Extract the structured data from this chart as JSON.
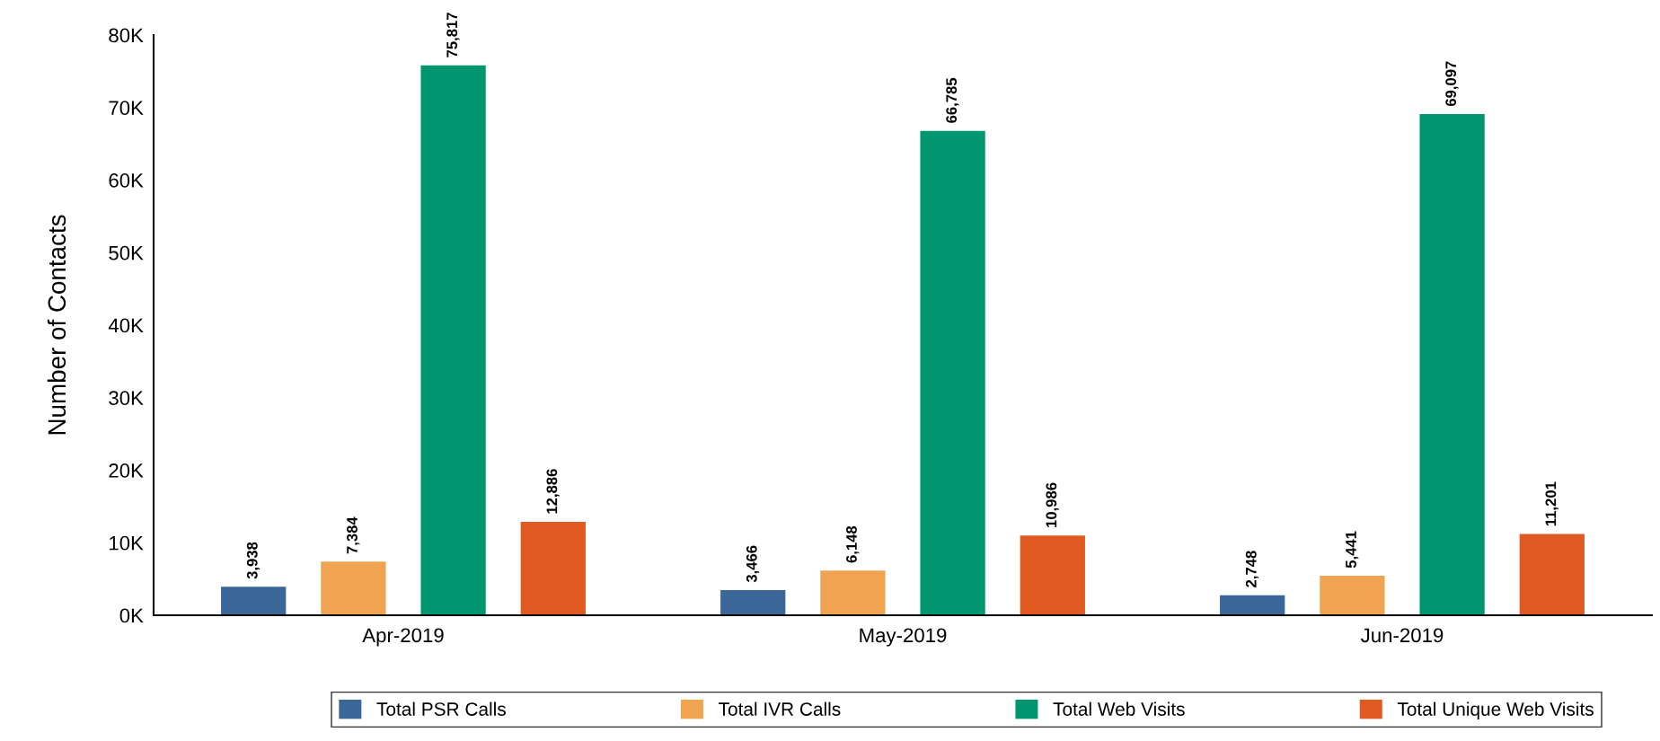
{
  "chart_data": {
    "type": "bar",
    "ylabel": "Number of Contacts",
    "categories": [
      "Apr-2019",
      "May-2019",
      "Jun-2019"
    ],
    "series": [
      {
        "name": "Total PSR Calls",
        "color": "#3b6698",
        "values": [
          3938,
          3466,
          2748
        ],
        "value_labels": [
          "3,938",
          "3,466",
          "2,748"
        ]
      },
      {
        "name": "Total IVR Calls",
        "color": "#f0a452",
        "values": [
          7384,
          6148,
          5441
        ],
        "value_labels": [
          "7,384",
          "6,148",
          "5,441"
        ]
      },
      {
        "name": "Total Web Visits",
        "color": "#009670",
        "values": [
          75817,
          66785,
          69097
        ],
        "value_labels": [
          "75,817",
          "66,785",
          "69,097"
        ]
      },
      {
        "name": "Total Unique Web Visits",
        "color": "#e05a22",
        "values": [
          12886,
          10986,
          11201
        ],
        "value_labels": [
          "12,886",
          "10,986",
          "11,201"
        ]
      }
    ],
    "ylim": [
      0,
      80000
    ],
    "yticks": [
      {
        "value": 0,
        "label": "0K"
      },
      {
        "value": 10000,
        "label": "10K"
      },
      {
        "value": 20000,
        "label": "20K"
      },
      {
        "value": 30000,
        "label": "30K"
      },
      {
        "value": 40000,
        "label": "40K"
      },
      {
        "value": 50000,
        "label": "50K"
      },
      {
        "value": 60000,
        "label": "60K"
      },
      {
        "value": 70000,
        "label": "70K"
      },
      {
        "value": 80000,
        "label": "80K"
      }
    ],
    "grid": false,
    "legend": "bottom"
  }
}
